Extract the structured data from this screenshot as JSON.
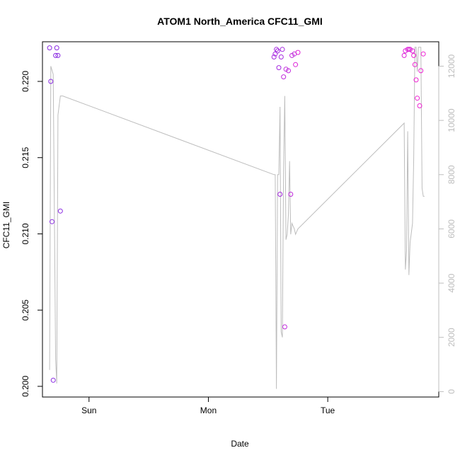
{
  "chart_data": {
    "type": "scatter",
    "title": "ATOM1 North_America CFC11_GMI",
    "xlabel": "Date",
    "ylabel": "CFC11_GMI",
    "x_ticks": [
      "Sun",
      "Mon",
      "Tue"
    ],
    "x_tick_positions": [
      1.0,
      2.0,
      3.0
    ],
    "xlim": [
      0.61,
      3.93
    ],
    "ylim": [
      0.1993,
      0.2226
    ],
    "y_ticks": [
      0.2,
      0.205,
      0.21,
      0.215,
      0.22
    ],
    "y_tick_labels": [
      "0.200",
      "0.205",
      "0.210",
      "0.215",
      "0.220"
    ],
    "y2lim": [
      -200,
      12900
    ],
    "y2_ticks": [
      0,
      2000,
      4000,
      6000,
      8000,
      10000,
      12000
    ],
    "y2_tick_labels": [
      "0",
      "2000",
      "4000",
      "6000",
      "8000",
      "10000",
      "12000"
    ],
    "line_color": "#bdbdbd",
    "point_colors": [
      "#8a2be2",
      "#a52ae0",
      "#c02bdc",
      "#dd22d8",
      "#ee22d2"
    ],
    "points": [
      {
        "x": 0.67,
        "y": 0.2222
      },
      {
        "x": 0.68,
        "y": 0.22
      },
      {
        "x": 0.69,
        "y": 0.2108
      },
      {
        "x": 0.7,
        "y": 0.2004
      },
      {
        "x": 0.72,
        "y": 0.2217
      },
      {
        "x": 0.73,
        "y": 0.2222
      },
      {
        "x": 0.74,
        "y": 0.2217
      },
      {
        "x": 0.76,
        "y": 0.2115
      },
      {
        "x": 2.55,
        "y": 0.2216
      },
      {
        "x": 2.56,
        "y": 0.2218
      },
      {
        "x": 2.57,
        "y": 0.2221
      },
      {
        "x": 2.58,
        "y": 0.222
      },
      {
        "x": 2.59,
        "y": 0.2209
      },
      {
        "x": 2.6,
        "y": 0.2126
      },
      {
        "x": 2.61,
        "y": 0.2216
      },
      {
        "x": 2.62,
        "y": 0.2221
      },
      {
        "x": 2.63,
        "y": 0.2203
      },
      {
        "x": 2.64,
        "y": 0.2039
      },
      {
        "x": 2.65,
        "y": 0.2208
      },
      {
        "x": 2.67,
        "y": 0.2207
      },
      {
        "x": 2.69,
        "y": 0.2126
      },
      {
        "x": 2.7,
        "y": 0.2217
      },
      {
        "x": 2.72,
        "y": 0.2218
      },
      {
        "x": 2.73,
        "y": 0.2211
      },
      {
        "x": 2.75,
        "y": 0.2219
      },
      {
        "x": 3.64,
        "y": 0.2217
      },
      {
        "x": 3.65,
        "y": 0.222
      },
      {
        "x": 3.67,
        "y": 0.2221
      },
      {
        "x": 3.68,
        "y": 0.2221
      },
      {
        "x": 3.69,
        "y": 0.2221
      },
      {
        "x": 3.71,
        "y": 0.222
      },
      {
        "x": 3.72,
        "y": 0.2217
      },
      {
        "x": 3.73,
        "y": 0.2211
      },
      {
        "x": 3.74,
        "y": 0.2201
      },
      {
        "x": 3.75,
        "y": 0.2189
      },
      {
        "x": 3.77,
        "y": 0.2184
      },
      {
        "x": 3.78,
        "y": 0.2207
      },
      {
        "x": 3.8,
        "y": 0.2218
      }
    ],
    "line_series": {
      "axis": "right",
      "x": [
        0.67,
        0.68,
        0.7,
        0.72,
        0.73,
        0.74,
        0.76,
        0.78,
        2.55,
        2.56,
        2.57,
        2.58,
        2.59,
        2.6,
        2.61,
        2.62,
        2.63,
        2.64,
        2.65,
        2.66,
        2.67,
        2.68,
        2.69,
        2.7,
        2.72,
        2.73,
        2.74,
        2.75,
        3.64,
        3.65,
        3.66,
        3.67,
        3.68,
        3.69,
        3.71,
        3.72,
        3.73,
        3.74,
        3.75,
        3.76,
        3.77,
        3.78,
        3.79,
        3.8,
        3.81
      ],
      "y": [
        800,
        12000,
        11700,
        1200,
        300,
        10200,
        10900,
        10900,
        8000,
        8000,
        100,
        8000,
        8000,
        10500,
        2200,
        2000,
        8200,
        10900,
        5600,
        5800,
        6500,
        8500,
        5800,
        6200,
        6000,
        5800,
        5900,
        6000,
        9900,
        4500,
        5200,
        9600,
        4300,
        5500,
        6200,
        8600,
        12700,
        12700,
        11800,
        12700,
        12700,
        12700,
        7500,
        7200,
        7200
      ]
    }
  }
}
